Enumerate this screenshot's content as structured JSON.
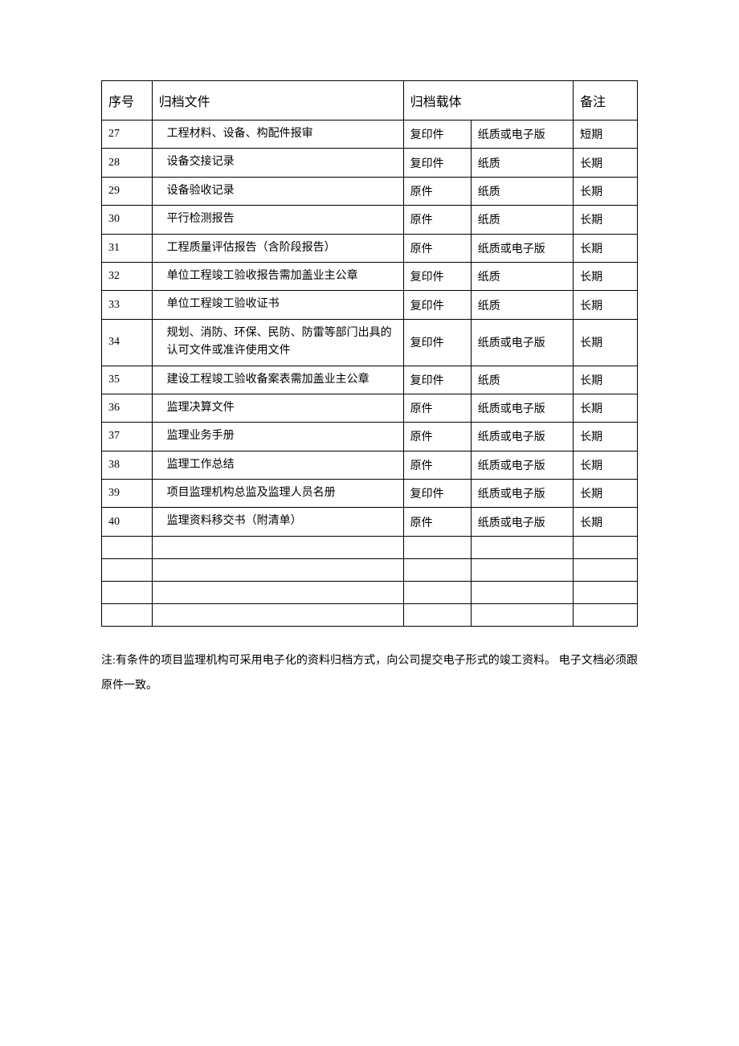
{
  "table": {
    "headers": {
      "seq": "序号",
      "file": "归档文件",
      "media": "归档载体",
      "note": "备注"
    },
    "rows": [
      {
        "seq": "27",
        "file": "工程材料、设备、构配件报审",
        "media1": "复印件",
        "media2": "纸质或电子版",
        "note": "短期"
      },
      {
        "seq": "28",
        "file": "设备交接记录",
        "media1": "复印件",
        "media2": "纸质",
        "note": "长期"
      },
      {
        "seq": "29",
        "file": "设备验收记录",
        "media1": "原件",
        "media2": "纸质",
        "note": "长期"
      },
      {
        "seq": "30",
        "file": "平行检测报告",
        "media1": "原件",
        "media2": "纸质",
        "note": "长期"
      },
      {
        "seq": "31",
        "file": "工程质量评估报告（含阶段报告）",
        "media1": "原件",
        "media2": "纸质或电子版",
        "note": "长期"
      },
      {
        "seq": "32",
        "file": "单位工程竣工验收报告需加盖业主公章",
        "media1": "复印件",
        "media2": "纸质",
        "note": "长期"
      },
      {
        "seq": "33",
        "file": "单位工程竣工验收证书",
        "media1": "复印件",
        "media2": "纸质",
        "note": "长期"
      },
      {
        "seq": "34",
        "file": "规划、消防、环保、民防、防雷等部门出具的认可文件或准许使用文件",
        "media1": "复印件",
        "media2": "纸质或电子版",
        "note": "长期"
      },
      {
        "seq": "35",
        "file": "建设工程竣工验收备案表需加盖业主公章",
        "media1": "复印件",
        "media2": "纸质",
        "note": "长期"
      },
      {
        "seq": "36",
        "file": "监理决算文件",
        "media1": "原件",
        "media2": "纸质或电子版",
        "note": "长期"
      },
      {
        "seq": "37",
        "file": "监理业务手册",
        "media1": "原件",
        "media2": "纸质或电子版",
        "note": "长期"
      },
      {
        "seq": "38",
        "file": "监理工作总结",
        "media1": "原件",
        "media2": "纸质或电子版",
        "note": "长期"
      },
      {
        "seq": "39",
        "file": "项目监理机构总监及监理人员名册",
        "media1": "复印件",
        "media2": "纸质或电子版",
        "note": "长期"
      },
      {
        "seq": "40",
        "file": "监理资料移交书（附清单）",
        "media1": "原件",
        "media2": "纸质或电子版",
        "note": "长期"
      }
    ],
    "empty_rows": 4,
    "column_widths": {
      "seq": 58,
      "file": 290,
      "media1": 78,
      "media2": 118,
      "note": 74
    },
    "border_color": "#000000",
    "background_color": "#ffffff",
    "header_fontsize": 16,
    "cell_fontsize": 14,
    "text_color": "#000000"
  },
  "footnote": "注:有条件的项目监理机构可采用电子化的资料归档方式，向公司提交电子形式的竣工资料。 电子文档必须跟原件一致。"
}
